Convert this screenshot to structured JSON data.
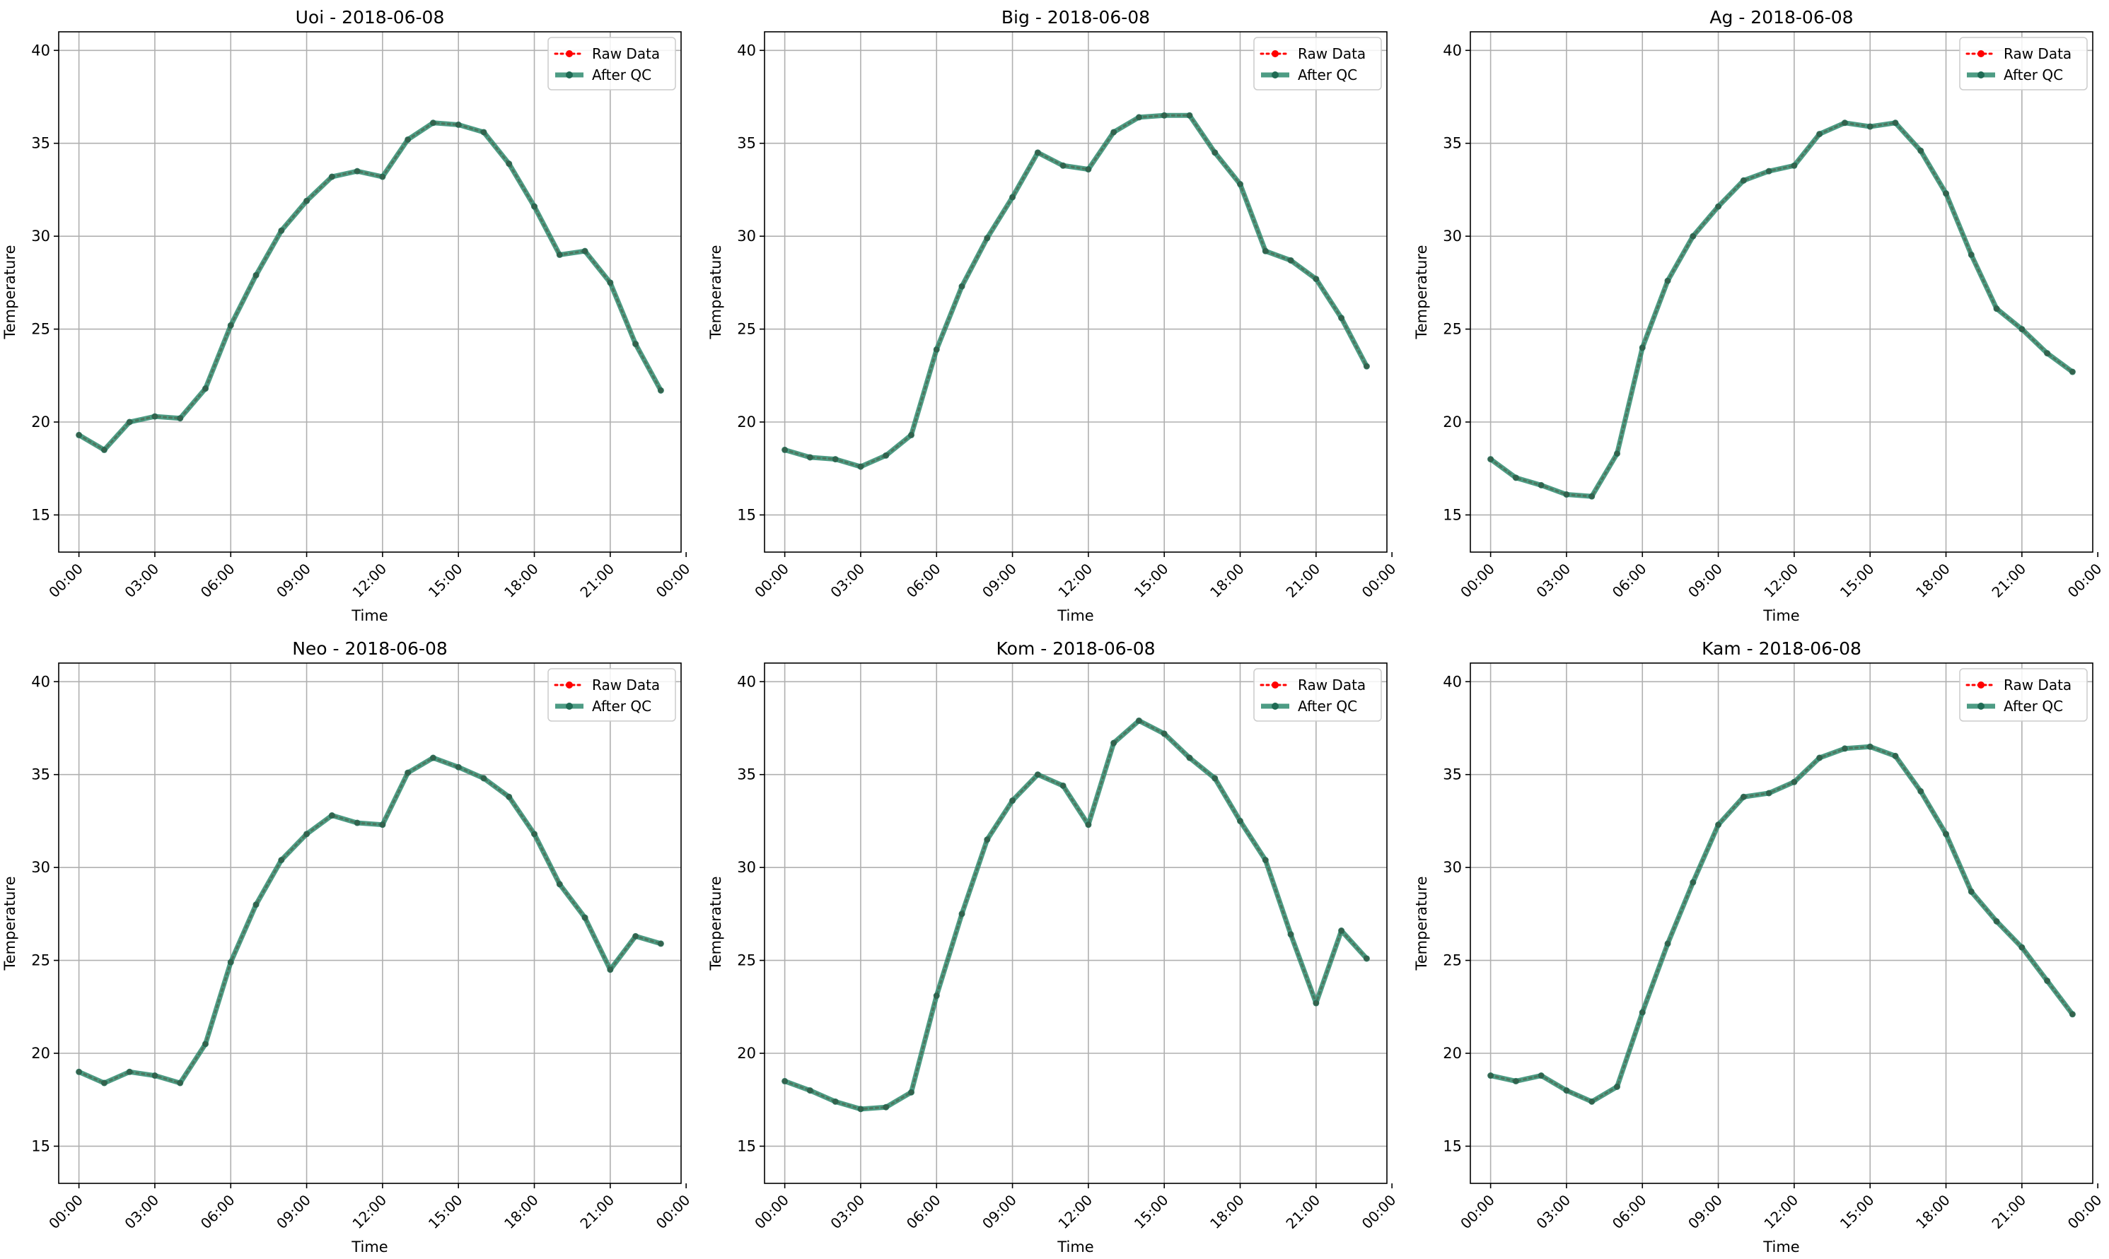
{
  "colors": {
    "raw": "#ff0000",
    "qc": "#2e8b6e",
    "grid": "#b0b0b0",
    "axis": "#000000"
  },
  "chart_data": [
    {
      "type": "line",
      "title": "Uoi - 2018-06-08",
      "xlabel": "Time",
      "ylabel": "Temperature",
      "xlim": [
        -0.8,
        23.8
      ],
      "ylim": [
        13,
        41
      ],
      "xticks": [
        0,
        3,
        6,
        9,
        12,
        15,
        18,
        21,
        24
      ],
      "xtick_labels": [
        "00:00",
        "03:00",
        "06:00",
        "09:00",
        "12:00",
        "15:00",
        "18:00",
        "21:00",
        "00:00"
      ],
      "yticks": [
        15,
        20,
        25,
        30,
        35,
        40
      ],
      "grid": true,
      "legend_position": "top-right",
      "x": [
        0,
        1,
        2,
        3,
        4,
        5,
        6,
        7,
        8,
        9,
        10,
        11,
        12,
        13,
        14,
        15,
        16,
        17,
        18,
        19,
        20,
        21,
        22,
        23
      ],
      "series": [
        {
          "name": "Raw Data",
          "values": [
            19.3,
            18.5,
            20.0,
            20.3,
            20.2,
            21.8,
            25.2,
            27.9,
            30.3,
            31.9,
            33.2,
            33.5,
            33.2,
            35.2,
            36.1,
            36.0,
            35.6,
            33.9,
            31.6,
            29.0,
            29.2,
            27.5,
            24.2,
            21.7
          ]
        },
        {
          "name": "After QC",
          "values": [
            19.3,
            18.5,
            20.0,
            20.3,
            20.2,
            21.8,
            25.2,
            27.9,
            30.3,
            31.9,
            33.2,
            33.5,
            33.2,
            35.2,
            36.1,
            36.0,
            35.6,
            33.9,
            31.6,
            29.0,
            29.2,
            27.5,
            24.2,
            21.7
          ]
        }
      ]
    },
    {
      "type": "line",
      "title": "Big - 2018-06-08",
      "xlabel": "Time",
      "ylabel": "Temperature",
      "xlim": [
        -0.8,
        23.8
      ],
      "ylim": [
        13,
        41
      ],
      "xticks": [
        0,
        3,
        6,
        9,
        12,
        15,
        18,
        21,
        24
      ],
      "xtick_labels": [
        "00:00",
        "03:00",
        "06:00",
        "09:00",
        "12:00",
        "15:00",
        "18:00",
        "21:00",
        "00:00"
      ],
      "yticks": [
        15,
        20,
        25,
        30,
        35,
        40
      ],
      "grid": true,
      "legend_position": "top-right",
      "x": [
        0,
        1,
        2,
        3,
        4,
        5,
        6,
        7,
        8,
        9,
        10,
        11,
        12,
        13,
        14,
        15,
        16,
        17,
        18,
        19,
        20,
        21,
        22,
        23
      ],
      "series": [
        {
          "name": "Raw Data",
          "values": [
            18.5,
            18.1,
            18.0,
            17.6,
            18.2,
            19.3,
            23.9,
            27.3,
            29.9,
            32.1,
            34.5,
            33.8,
            33.6,
            35.6,
            36.4,
            36.5,
            36.5,
            34.5,
            32.8,
            29.2,
            28.7,
            27.7,
            25.6,
            23.0
          ]
        },
        {
          "name": "After QC",
          "values": [
            18.5,
            18.1,
            18.0,
            17.6,
            18.2,
            19.3,
            23.9,
            27.3,
            29.9,
            32.1,
            34.5,
            33.8,
            33.6,
            35.6,
            36.4,
            36.5,
            36.5,
            34.5,
            32.8,
            29.2,
            28.7,
            27.7,
            25.6,
            23.0
          ]
        }
      ]
    },
    {
      "type": "line",
      "title": "Ag - 2018-06-08",
      "xlabel": "Time",
      "ylabel": "Temperature",
      "xlim": [
        -0.8,
        23.8
      ],
      "ylim": [
        13,
        41
      ],
      "xticks": [
        0,
        3,
        6,
        9,
        12,
        15,
        18,
        21,
        24
      ],
      "xtick_labels": [
        "00:00",
        "03:00",
        "06:00",
        "09:00",
        "12:00",
        "15:00",
        "18:00",
        "21:00",
        "00:00"
      ],
      "yticks": [
        15,
        20,
        25,
        30,
        35,
        40
      ],
      "grid": true,
      "legend_position": "top-right",
      "x": [
        0,
        1,
        2,
        3,
        4,
        5,
        6,
        7,
        8,
        9,
        10,
        11,
        12,
        13,
        14,
        15,
        16,
        17,
        18,
        19,
        20,
        21,
        22,
        23
      ],
      "series": [
        {
          "name": "Raw Data",
          "values": [
            18.0,
            17.0,
            16.6,
            16.1,
            16.0,
            18.3,
            24.0,
            27.6,
            30.0,
            31.6,
            33.0,
            33.5,
            33.8,
            35.5,
            36.1,
            35.9,
            36.1,
            34.6,
            32.3,
            29.0,
            26.1,
            25.0,
            23.7,
            22.7
          ]
        },
        {
          "name": "After QC",
          "values": [
            18.0,
            17.0,
            16.6,
            16.1,
            16.0,
            18.3,
            24.0,
            27.6,
            30.0,
            31.6,
            33.0,
            33.5,
            33.8,
            35.5,
            36.1,
            35.9,
            36.1,
            34.6,
            32.3,
            29.0,
            26.1,
            25.0,
            23.7,
            22.7
          ]
        }
      ]
    },
    {
      "type": "line",
      "title": "Neo - 2018-06-08",
      "xlabel": "Time",
      "ylabel": "Temperature",
      "xlim": [
        -0.8,
        23.8
      ],
      "ylim": [
        13,
        41
      ],
      "xticks": [
        0,
        3,
        6,
        9,
        12,
        15,
        18,
        21,
        24
      ],
      "xtick_labels": [
        "00:00",
        "03:00",
        "06:00",
        "09:00",
        "12:00",
        "15:00",
        "18:00",
        "21:00",
        "00:00"
      ],
      "yticks": [
        15,
        20,
        25,
        30,
        35,
        40
      ],
      "grid": true,
      "legend_position": "top-right",
      "x": [
        0,
        1,
        2,
        3,
        4,
        5,
        6,
        7,
        8,
        9,
        10,
        11,
        12,
        13,
        14,
        15,
        16,
        17,
        18,
        19,
        20,
        21,
        22,
        23
      ],
      "series": [
        {
          "name": "Raw Data",
          "values": [
            19.0,
            18.4,
            19.0,
            18.8,
            18.4,
            20.5,
            24.9,
            28.0,
            30.4,
            31.8,
            32.8,
            32.4,
            32.3,
            35.1,
            35.9,
            35.4,
            34.8,
            33.8,
            31.8,
            29.1,
            27.3,
            24.5,
            26.3,
            25.9
          ]
        },
        {
          "name": "After QC",
          "values": [
            19.0,
            18.4,
            19.0,
            18.8,
            18.4,
            20.5,
            24.9,
            28.0,
            30.4,
            31.8,
            32.8,
            32.4,
            32.3,
            35.1,
            35.9,
            35.4,
            34.8,
            33.8,
            31.8,
            29.1,
            27.3,
            24.5,
            26.3,
            25.9
          ]
        }
      ]
    },
    {
      "type": "line",
      "title": "Kom - 2018-06-08",
      "xlabel": "Time",
      "ylabel": "Temperature",
      "xlim": [
        -0.8,
        23.8
      ],
      "ylim": [
        13,
        41
      ],
      "xticks": [
        0,
        3,
        6,
        9,
        12,
        15,
        18,
        21,
        24
      ],
      "xtick_labels": [
        "00:00",
        "03:00",
        "06:00",
        "09:00",
        "12:00",
        "15:00",
        "18:00",
        "21:00",
        "00:00"
      ],
      "yticks": [
        15,
        20,
        25,
        30,
        35,
        40
      ],
      "grid": true,
      "legend_position": "top-right",
      "x": [
        0,
        1,
        2,
        3,
        4,
        5,
        6,
        7,
        8,
        9,
        10,
        11,
        12,
        13,
        14,
        15,
        16,
        17,
        18,
        19,
        20,
        21,
        22,
        23
      ],
      "series": [
        {
          "name": "Raw Data",
          "values": [
            18.5,
            18.0,
            17.4,
            17.0,
            17.1,
            17.9,
            23.1,
            27.5,
            31.5,
            33.6,
            35.0,
            34.4,
            32.3,
            36.7,
            37.9,
            37.2,
            35.9,
            34.8,
            32.5,
            30.4,
            26.4,
            22.7,
            26.6,
            25.1
          ]
        },
        {
          "name": "After QC",
          "values": [
            18.5,
            18.0,
            17.4,
            17.0,
            17.1,
            17.9,
            23.1,
            27.5,
            31.5,
            33.6,
            35.0,
            34.4,
            32.3,
            36.7,
            37.9,
            37.2,
            35.9,
            34.8,
            32.5,
            30.4,
            26.4,
            22.7,
            26.6,
            25.1
          ]
        }
      ]
    },
    {
      "type": "line",
      "title": "Kam - 2018-06-08",
      "xlabel": "Time",
      "ylabel": "Temperature",
      "xlim": [
        -0.8,
        23.8
      ],
      "ylim": [
        13,
        41
      ],
      "xticks": [
        0,
        3,
        6,
        9,
        12,
        15,
        18,
        21,
        24
      ],
      "xtick_labels": [
        "00:00",
        "03:00",
        "06:00",
        "09:00",
        "12:00",
        "15:00",
        "18:00",
        "21:00",
        "00:00"
      ],
      "yticks": [
        15,
        20,
        25,
        30,
        35,
        40
      ],
      "grid": true,
      "legend_position": "top-right",
      "x": [
        0,
        1,
        2,
        3,
        4,
        5,
        6,
        7,
        8,
        9,
        10,
        11,
        12,
        13,
        14,
        15,
        16,
        17,
        18,
        19,
        20,
        21,
        22,
        23
      ],
      "series": [
        {
          "name": "Raw Data",
          "values": [
            18.8,
            18.5,
            18.8,
            18.0,
            17.4,
            18.2,
            22.2,
            25.9,
            29.2,
            32.3,
            33.8,
            34.0,
            34.6,
            35.9,
            36.4,
            36.5,
            36.0,
            34.1,
            31.8,
            28.7,
            27.1,
            25.7,
            23.9,
            22.1
          ]
        },
        {
          "name": "After QC",
          "values": [
            18.8,
            18.5,
            18.8,
            18.0,
            17.4,
            18.2,
            22.2,
            25.9,
            29.2,
            32.3,
            33.8,
            34.0,
            34.6,
            35.9,
            36.4,
            36.5,
            36.0,
            34.1,
            31.8,
            28.7,
            27.1,
            25.7,
            23.9,
            22.1
          ]
        }
      ]
    }
  ]
}
